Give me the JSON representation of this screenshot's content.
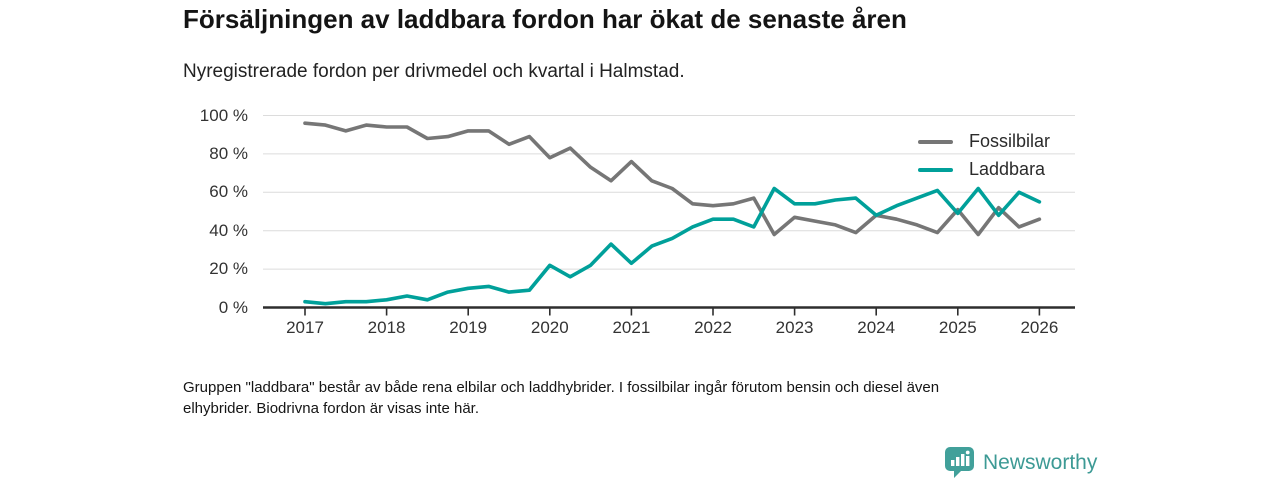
{
  "header": {
    "title": "Försäljningen av laddbara fordon har ökat de senaste åren",
    "subtitle": "Nyregistrerade fordon per drivmedel och kvartal i Halmstad."
  },
  "chart_data": {
    "type": "line",
    "title": "Försäljningen av laddbara fordon har ökat de senaste åren",
    "subtitle": "Nyregistrerade fordon per drivmedel och kvartal i Halmstad.",
    "unit": "%",
    "ylim": [
      0,
      100
    ],
    "grid": "horizontal",
    "legend_position": "top-right",
    "x_tick_labels": [
      "2017",
      "2018",
      "2019",
      "2020",
      "2021",
      "2022",
      "2023",
      "2024",
      "2025",
      "2026"
    ],
    "y_tick_labels": [
      "0 %",
      "20 %",
      "40 %",
      "60 %",
      "80 %",
      "100 %"
    ],
    "x": [
      "2017-Q1",
      "2017-Q2",
      "2017-Q3",
      "2017-Q4",
      "2018-Q1",
      "2018-Q2",
      "2018-Q3",
      "2018-Q4",
      "2019-Q1",
      "2019-Q2",
      "2019-Q3",
      "2019-Q4",
      "2020-Q1",
      "2020-Q2",
      "2020-Q3",
      "2020-Q4",
      "2021-Q1",
      "2021-Q2",
      "2021-Q3",
      "2021-Q4",
      "2022-Q1",
      "2022-Q2",
      "2022-Q3",
      "2022-Q4",
      "2023-Q1",
      "2023-Q2",
      "2023-Q3",
      "2023-Q4",
      "2024-Q1",
      "2024-Q2",
      "2024-Q3",
      "2024-Q4",
      "2025-Q1",
      "2025-Q2",
      "2025-Q3",
      "2025-Q4",
      "2026-Q1"
    ],
    "series": [
      {
        "name": "Fossilbilar",
        "color": "#767676",
        "values": [
          96,
          95,
          92,
          95,
          94,
          94,
          88,
          89,
          92,
          92,
          85,
          89,
          78,
          83,
          73,
          66,
          76,
          66,
          62,
          54,
          53,
          54,
          57,
          38,
          47,
          45,
          43,
          39,
          48,
          46,
          43,
          39,
          51,
          38,
          52,
          42,
          46
        ]
      },
      {
        "name": "Laddbara",
        "color": "#00a09a",
        "values": [
          3,
          2,
          3,
          3,
          4,
          6,
          4,
          8,
          10,
          11,
          8,
          9,
          22,
          16,
          22,
          33,
          23,
          32,
          36,
          42,
          46,
          46,
          42,
          62,
          54,
          54,
          56,
          57,
          48,
          53,
          57,
          61,
          49,
          62,
          48,
          60,
          55
        ]
      }
    ]
  },
  "footnote": {
    "lines": [
      "Gruppen \"laddbara\" består av både rena elbilar och laddhybrider. I fossilbilar ingår förutom bensin och diesel även",
      "elhybrider. Biodrivna fordon är visas inte här."
    ]
  },
  "logo": {
    "text": "Newsworthy",
    "color": "#3d9a95",
    "icon": "bar-chart-pin-icon",
    "icon_color": "#41a09a"
  }
}
